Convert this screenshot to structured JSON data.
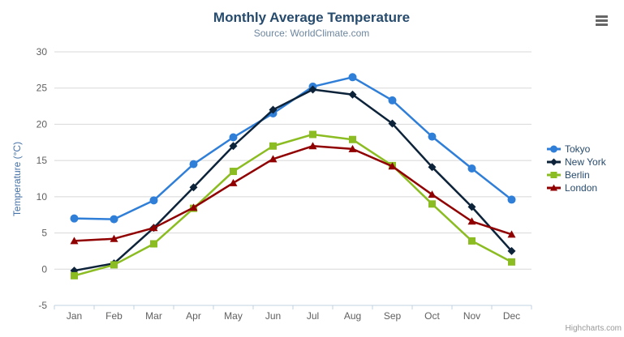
{
  "header": {
    "title": "Monthly Average Temperature",
    "subtitle": "Source: WorldClimate.com"
  },
  "toolbar": {
    "export_menu_icon": "hamburger-icon"
  },
  "credit": {
    "label": "Highcharts.com"
  },
  "chart_data": {
    "type": "line",
    "title": "Monthly Average Temperature",
    "subtitle": "Source: WorldClimate.com",
    "xlabel": "",
    "ylabel": "Temperature (°C)",
    "ylim": [
      -5,
      30
    ],
    "yticks": [
      -5,
      0,
      5,
      10,
      15,
      20,
      25,
      30
    ],
    "grid": true,
    "legend_position": "right",
    "categories": [
      "Jan",
      "Feb",
      "Mar",
      "Apr",
      "May",
      "Jun",
      "Jul",
      "Aug",
      "Sep",
      "Oct",
      "Nov",
      "Dec"
    ],
    "series": [
      {
        "name": "Tokyo",
        "color": "#2f7ed8",
        "marker": "circle",
        "values": [
          7.0,
          6.9,
          9.5,
          14.5,
          18.2,
          21.5,
          25.2,
          26.5,
          23.3,
          18.3,
          13.9,
          9.6
        ]
      },
      {
        "name": "New York",
        "color": "#0d233a",
        "marker": "diamond",
        "values": [
          -0.2,
          0.8,
          5.7,
          11.3,
          17.0,
          22.0,
          24.8,
          24.1,
          20.1,
          14.1,
          8.6,
          2.5
        ]
      },
      {
        "name": "Berlin",
        "color": "#8bbc21",
        "marker": "square",
        "values": [
          -0.9,
          0.6,
          3.5,
          8.4,
          13.5,
          17.0,
          18.6,
          17.9,
          14.3,
          9.0,
          3.9,
          1.0
        ]
      },
      {
        "name": "London",
        "color": "#910000",
        "marker": "triangle",
        "values": [
          3.9,
          4.2,
          5.7,
          8.5,
          11.9,
          15.2,
          17.0,
          16.6,
          14.2,
          10.3,
          6.6,
          4.8
        ]
      }
    ]
  },
  "colors": {
    "title": "#274b6d",
    "subtitle": "#6d869f",
    "axis_title": "#4572a7",
    "tick_label": "#606060",
    "grid": "#d8d8d8",
    "axis_line": "#c0d0e0",
    "legend_text": "#274b6d",
    "credit": "#999999",
    "menu_icon": "#666666"
  }
}
